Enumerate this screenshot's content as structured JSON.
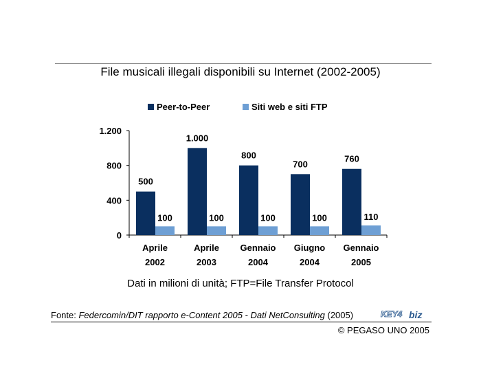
{
  "title": "File musicali illegali disponibili su Internet (2002-2005)",
  "note": "Dati in milioni di unità; FTP=File Transfer Protocol",
  "source": {
    "prefix": "Fonte: ",
    "publication": "Federcomin/DIT rapporto e-Content 2005 - Dati NetConsulting",
    "suffix": " (2005)",
    "logo_text_a": "KEY4",
    "logo_text_b": "biz"
  },
  "copyright": "© PEGASO UNO 2005",
  "colors": {
    "peer": "#0a2f5f",
    "web": "#6e9fd4",
    "logo": "#2b5a8f"
  },
  "chart_data": {
    "type": "bar",
    "title": "File musicali illegali disponibili su Internet (2002-2005)",
    "categories": [
      [
        "Aprile",
        "2002"
      ],
      [
        "Aprile",
        "2003"
      ],
      [
        "Gennaio",
        "2004"
      ],
      [
        "Giugno",
        "2004"
      ],
      [
        "Gennaio",
        "2005"
      ]
    ],
    "series": [
      {
        "name": "Peer-to-Peer",
        "values": [
          500,
          1000,
          800,
          700,
          760
        ],
        "labels": [
          "500",
          "1.000",
          "800",
          "700",
          "760"
        ]
      },
      {
        "name": "Siti web e siti FTP",
        "values": [
          100,
          100,
          100,
          100,
          110
        ],
        "labels": [
          "100",
          "100",
          "100",
          "100",
          "110"
        ]
      }
    ],
    "yticks": [
      0,
      400,
      800,
      1200
    ],
    "ytick_labels": [
      "0",
      "400",
      "800",
      "1.200"
    ],
    "ylim": [
      0,
      1200
    ],
    "legend_position": "top",
    "grid": false
  }
}
